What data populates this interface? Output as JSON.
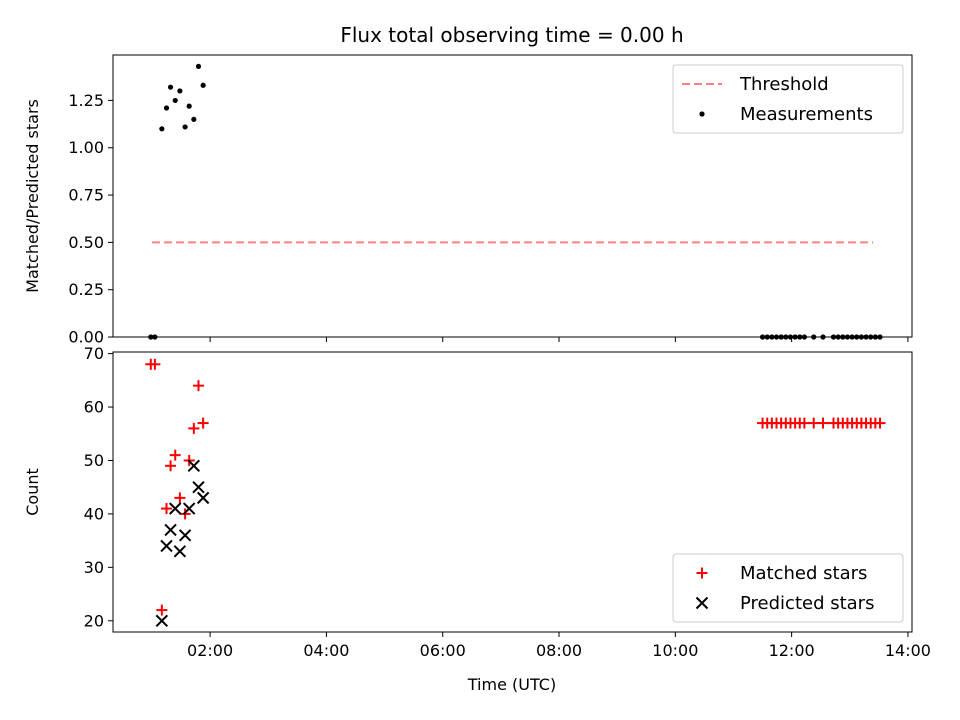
{
  "title": "Flux total observing time = 0.00 h",
  "xlabel": "Time (UTC)",
  "x_tick_labels": [
    "02:00",
    "04:00",
    "06:00",
    "08:00",
    "10:00",
    "12:00",
    "14:00"
  ],
  "chart_data": [
    {
      "type": "scatter",
      "ylabel": "Matched/Predicted stars",
      "ylim": [
        0,
        1.49
      ],
      "xlim": [
        0.33,
        14.07
      ],
      "y_ticks": [
        0.0,
        0.25,
        0.5,
        0.75,
        1.0,
        1.25
      ],
      "y_tick_labels": [
        "0.00",
        "0.25",
        "0.50",
        "0.75",
        "1.00",
        "1.25"
      ],
      "legend_position": "upper-right",
      "series": [
        {
          "name": "Threshold",
          "kind": "line-dashed",
          "color": "#ff7f7f",
          "x": [
            1.0,
            13.4
          ],
          "y": [
            0.5,
            0.5
          ]
        },
        {
          "name": "Measurements",
          "kind": "dot",
          "color": "#000000",
          "x": [
            0.98,
            1.05,
            1.17,
            1.25,
            1.32,
            1.4,
            1.48,
            1.57,
            1.64,
            1.72,
            1.8,
            1.88,
            11.5,
            11.58,
            11.66,
            11.74,
            11.82,
            11.9,
            11.98,
            12.06,
            12.14,
            12.22,
            12.38,
            12.54,
            12.72,
            12.8,
            12.88,
            12.96,
            13.04,
            13.12,
            13.2,
            13.28,
            13.36,
            13.44,
            13.52
          ],
          "y": [
            0.0,
            0.0,
            1.1,
            1.21,
            1.32,
            1.25,
            1.3,
            1.11,
            1.22,
            1.15,
            1.43,
            1.33,
            0.0,
            0.0,
            0.0,
            0.0,
            0.0,
            0.0,
            0.0,
            0.0,
            0.0,
            0.0,
            0.0,
            0.0,
            0.0,
            0.0,
            0.0,
            0.0,
            0.0,
            0.0,
            0.0,
            0.0,
            0.0,
            0.0,
            0.0
          ]
        }
      ]
    },
    {
      "type": "scatter",
      "ylabel": "Count",
      "ylim": [
        17.9,
        70.3
      ],
      "xlim": [
        0.33,
        14.07
      ],
      "y_ticks": [
        20,
        30,
        40,
        50,
        60,
        70
      ],
      "y_tick_labels": [
        "20",
        "30",
        "40",
        "50",
        "60",
        "70"
      ],
      "legend_position": "lower-right",
      "series": [
        {
          "name": "Matched stars",
          "kind": "plus",
          "color": "#ff0000",
          "x": [
            0.98,
            1.05,
            1.17,
            1.25,
            1.32,
            1.4,
            1.48,
            1.57,
            1.64,
            1.72,
            1.8,
            1.88,
            11.5,
            11.58,
            11.66,
            11.74,
            11.82,
            11.9,
            11.98,
            12.06,
            12.14,
            12.22,
            12.38,
            12.54,
            12.72,
            12.8,
            12.88,
            12.96,
            13.04,
            13.12,
            13.2,
            13.28,
            13.36,
            13.44,
            13.52
          ],
          "y": [
            68,
            68,
            22,
            41,
            49,
            51,
            43,
            40,
            50,
            56,
            64,
            57,
            57,
            57,
            57,
            57,
            57,
            57,
            57,
            57,
            57,
            57,
            57,
            57,
            57,
            57,
            57,
            57,
            57,
            57,
            57,
            57,
            57,
            57,
            57
          ]
        },
        {
          "name": "Predicted stars",
          "kind": "x",
          "color": "#000000",
          "x": [
            1.17,
            1.25,
            1.32,
            1.4,
            1.48,
            1.57,
            1.64,
            1.72,
            1.8,
            1.88
          ],
          "y": [
            20,
            34,
            37,
            41,
            33,
            36,
            41,
            49,
            45,
            43
          ]
        }
      ]
    }
  ]
}
